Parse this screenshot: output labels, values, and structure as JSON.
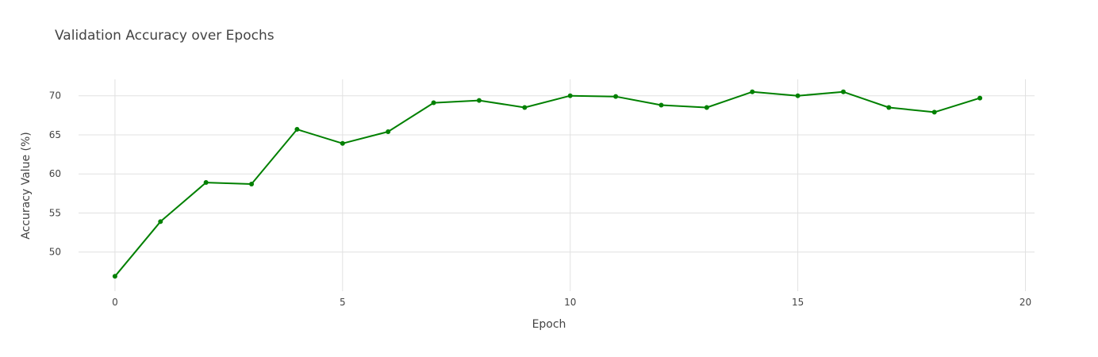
{
  "chart_data": {
    "type": "line",
    "title": "Validation Accuracy over Epochs",
    "xlabel": "Epoch",
    "ylabel": "Accuracy Value (%)",
    "xlim": [
      -0.8,
      20.2
    ],
    "ylim": [
      45.0,
      72.1
    ],
    "x_ticks": [
      0,
      5,
      10,
      15,
      20
    ],
    "y_ticks": [
      50,
      55,
      60,
      65,
      70
    ],
    "grid": true,
    "series": [
      {
        "color": "#008000",
        "mode": "lines+markers",
        "x": [
          0,
          1,
          2,
          3,
          4,
          5,
          6,
          7,
          8,
          9,
          10,
          11,
          12,
          13,
          14,
          15,
          16,
          17,
          18,
          19
        ],
        "y": [
          46.9,
          53.9,
          58.9,
          58.7,
          65.7,
          63.9,
          65.4,
          69.1,
          69.4,
          68.5,
          70.0,
          69.9,
          68.8,
          68.5,
          70.5,
          70.0,
          70.5,
          68.5,
          67.9,
          69.7
        ]
      }
    ]
  }
}
